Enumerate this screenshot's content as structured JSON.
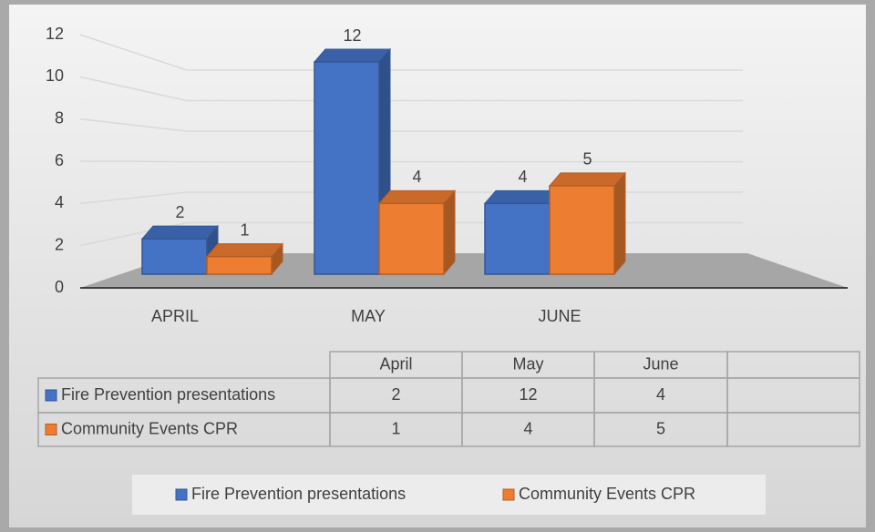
{
  "chart_data": {
    "type": "bar3d",
    "categories": [
      "APRIL",
      "MAY",
      "JUNE"
    ],
    "series": [
      {
        "name": "Fire Prevention presentations",
        "color": "#4472c4",
        "values": [
          2,
          12,
          4
        ]
      },
      {
        "name": "Community Events CPR",
        "color": "#ed7d31",
        "values": [
          1,
          4,
          5
        ]
      }
    ],
    "ylim": [
      0,
      12
    ],
    "yticks": [
      0,
      2,
      4,
      6,
      8,
      10,
      12
    ],
    "grid": true,
    "data_table": {
      "columns": [
        "April",
        "May",
        "June"
      ]
    },
    "legend": "bottom"
  }
}
